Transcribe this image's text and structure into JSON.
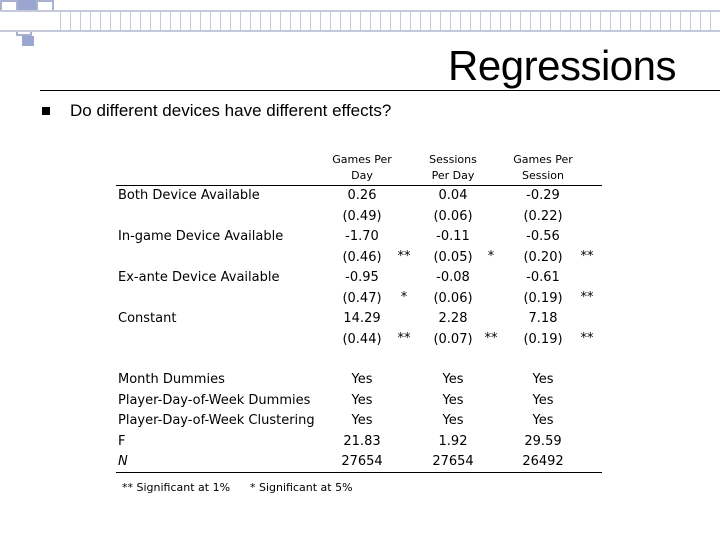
{
  "slide": {
    "title": "Regressions",
    "bullet": "Do different devices have different effects?"
  },
  "columns": [
    {
      "line1": "Games Per",
      "line2": "Day"
    },
    {
      "line1": "Sessions",
      "line2": "Per Day"
    },
    {
      "line1": "Games Per",
      "line2": "Session"
    }
  ],
  "coef_rows": [
    {
      "label": "Both Device Available",
      "coef": [
        {
          "value": "0.26",
          "stars": ""
        },
        {
          "value": "0.04",
          "stars": ""
        },
        {
          "value": "-0.29",
          "stars": ""
        }
      ],
      "se": [
        "(0.49)",
        "(0.06)",
        "(0.22)"
      ]
    },
    {
      "label": "In-game Device Available",
      "coef": [
        {
          "value": "-1.70",
          "stars": "**"
        },
        {
          "value": "-0.11",
          "stars": "*"
        },
        {
          "value": "-0.56",
          "stars": "**"
        }
      ],
      "se": [
        "(0.46)",
        "(0.05)",
        "(0.20)"
      ]
    },
    {
      "label": "Ex-ante Device Available",
      "coef": [
        {
          "value": "-0.95",
          "stars": "*"
        },
        {
          "value": "-0.08",
          "stars": ""
        },
        {
          "value": "-0.61",
          "stars": "**"
        }
      ],
      "se": [
        "(0.47)",
        "(0.06)",
        "(0.19)"
      ]
    },
    {
      "label": "Constant",
      "coef": [
        {
          "value": "14.29",
          "stars": "**"
        },
        {
          "value": "2.28",
          "stars": "**"
        },
        {
          "value": "7.18",
          "stars": "**"
        }
      ],
      "se": [
        "(0.44)",
        "(0.07)",
        "(0.19)"
      ]
    }
  ],
  "stat_rows": [
    {
      "label": "Month Dummies",
      "values": [
        "Yes",
        "Yes",
        "Yes"
      ]
    },
    {
      "label": "Player-Day-of-Week Dummies",
      "values": [
        "Yes",
        "Yes",
        "Yes"
      ]
    },
    {
      "label": "Player-Day-of-Week Clustering",
      "values": [
        "Yes",
        "Yes",
        "Yes"
      ]
    },
    {
      "label": "F",
      "values": [
        "21.83",
        "1.92",
        "29.59"
      ]
    },
    {
      "label": "N",
      "values": [
        "27654",
        "27654",
        "26492"
      ]
    }
  ],
  "footnotes": {
    "one_pct": "** Significant at 1%",
    "five_pct": "* Significant at 5%"
  }
}
